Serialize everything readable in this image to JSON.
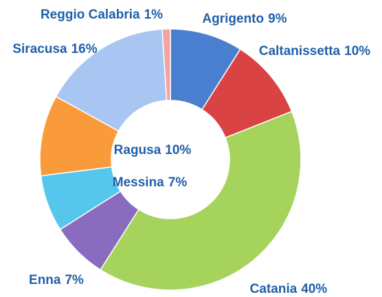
{
  "chart_data": {
    "type": "donut",
    "categories": [
      "Agrigento",
      "Caltanissetta",
      "Catania",
      "Enna",
      "Messina",
      "Ragusa",
      "Siracusa",
      "Reggio Calabria"
    ],
    "values": [
      9,
      10,
      40,
      7,
      7,
      10,
      16,
      1
    ],
    "value_labels": [
      "9%",
      "10%",
      "40%",
      "7%",
      "7%",
      "10%",
      "16%",
      "1%"
    ],
    "colors": [
      "#4a7fd0",
      "#d94343",
      "#a6d35b",
      "#8a6cbf",
      "#55c7ec",
      "#f99b3b",
      "#a9c5f1",
      "#f4a3a3"
    ]
  }
}
